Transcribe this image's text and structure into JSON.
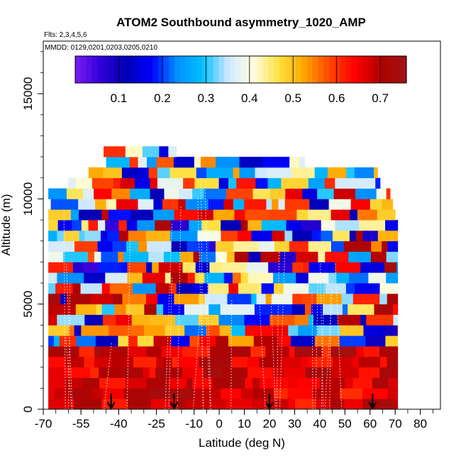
{
  "chart_data": {
    "type": "heatmap",
    "title": "ATOM2 Southbound asymmetry_1020_AMP",
    "subtitle_flights": "Flts: 2,3,4,5,6",
    "subtitle_dates": "MMDD: 0129,0201,0203,0205,0210",
    "xlabel": "Latitude (deg N)",
    "ylabel": "Altitude (m)",
    "xlim": [
      -70,
      88
    ],
    "ylim": [
      0,
      17500
    ],
    "x_ticks": [
      -70,
      -55,
      -40,
      -25,
      -10,
      0,
      10,
      20,
      30,
      40,
      50,
      60,
      70,
      80
    ],
    "y_ticks": [
      0,
      5000,
      10000,
      15000
    ],
    "colorbar": {
      "range": [
        0,
        0.76
      ],
      "ticks": [
        0.1,
        0.2,
        0.3,
        0.4,
        0.5,
        0.6,
        0.7
      ],
      "colors": [
        "#7a1cf2",
        "#3000d8",
        "#0000b4",
        "#0000ff",
        "#0090ff",
        "#00bfff",
        "#cfe8ff",
        "#ffffe0",
        "#ffe040",
        "#ffa500",
        "#ff4500",
        "#ff0000",
        "#b00000",
        "#a01414"
      ]
    },
    "arrow_latitudes": [
      -43,
      -18,
      20,
      61
    ],
    "profile_segment_summary": "Vertical profiles from -68 to 70 deg N, 0-12500 m; low altitudes (0-3000 m) mostly high values 0.6-0.7, mid altitudes mixed 0.1-0.6, upper segments near 10000-12500 m mixed."
  }
}
